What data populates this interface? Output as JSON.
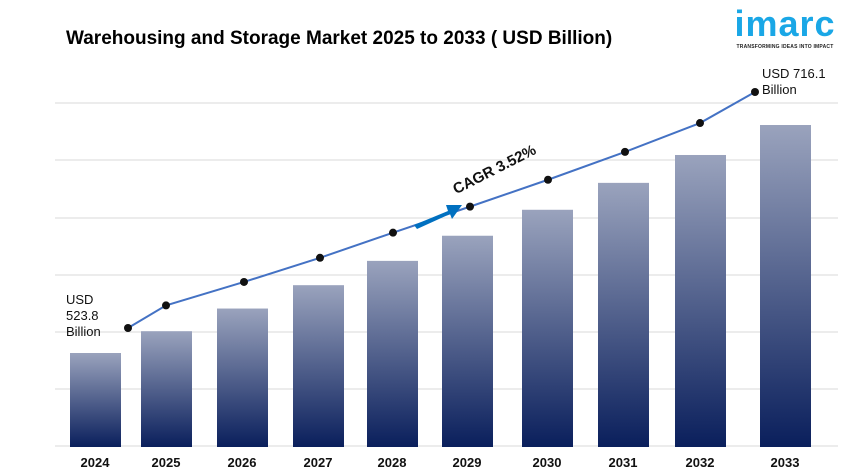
{
  "chart_data": {
    "type": "bar",
    "title": "Warehousing and Storage Market 2025 to 2033 ( USD Billion)",
    "categories": [
      "2024",
      "2025",
      "2026",
      "2027",
      "2028",
      "2029",
      "2030",
      "2031",
      "2032",
      "2033"
    ],
    "values": [
      523.8,
      542.2,
      561.3,
      581.0,
      601.5,
      622.7,
      644.6,
      667.3,
      690.8,
      716.1
    ],
    "trend_line": true,
    "grid": true,
    "annotations": {
      "start": [
        "USD",
        "523.8",
        "Billion"
      ],
      "end": [
        "USD 716.1",
        "Billion"
      ],
      "cagr": "CAGR 3.52%"
    },
    "colors": {
      "bar_top": "#9aa3bd",
      "bar_bottom": "#0a1f5c",
      "line": "#4472c4",
      "arrow": "#0070c0"
    }
  },
  "logo": {
    "word": "imarc",
    "tagline": "TRANSFORMING IDEAS INTO IMPACT"
  }
}
